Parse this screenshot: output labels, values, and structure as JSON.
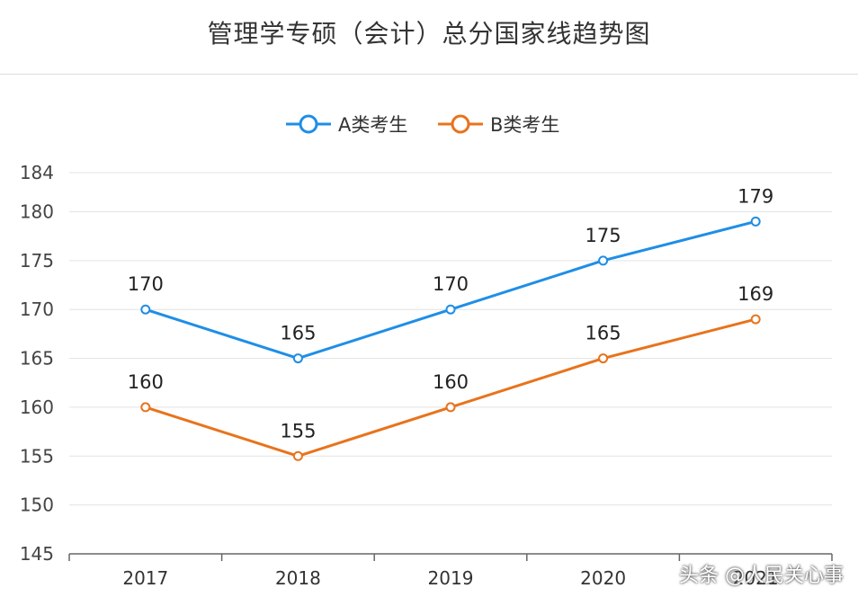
{
  "chart_data": {
    "type": "line",
    "title": "管理学专硕（会计）总分国家线趋势图",
    "categories": [
      "2017",
      "2018",
      "2019",
      "2020",
      "2021"
    ],
    "series": [
      {
        "name": "A类考生",
        "color": "#1f8ee6",
        "values": [
          170,
          165,
          170,
          175,
          179
        ]
      },
      {
        "name": "B类考生",
        "color": "#e8731c",
        "values": [
          160,
          155,
          160,
          165,
          169
        ]
      }
    ],
    "y_ticks": [
      145,
      150,
      155,
      160,
      165,
      170,
      175,
      180,
      184
    ],
    "ylim": [
      145,
      184
    ],
    "grid": true,
    "legend_position": "top-center",
    "data_labels": true
  },
  "watermark": "头条 @人民关心事"
}
